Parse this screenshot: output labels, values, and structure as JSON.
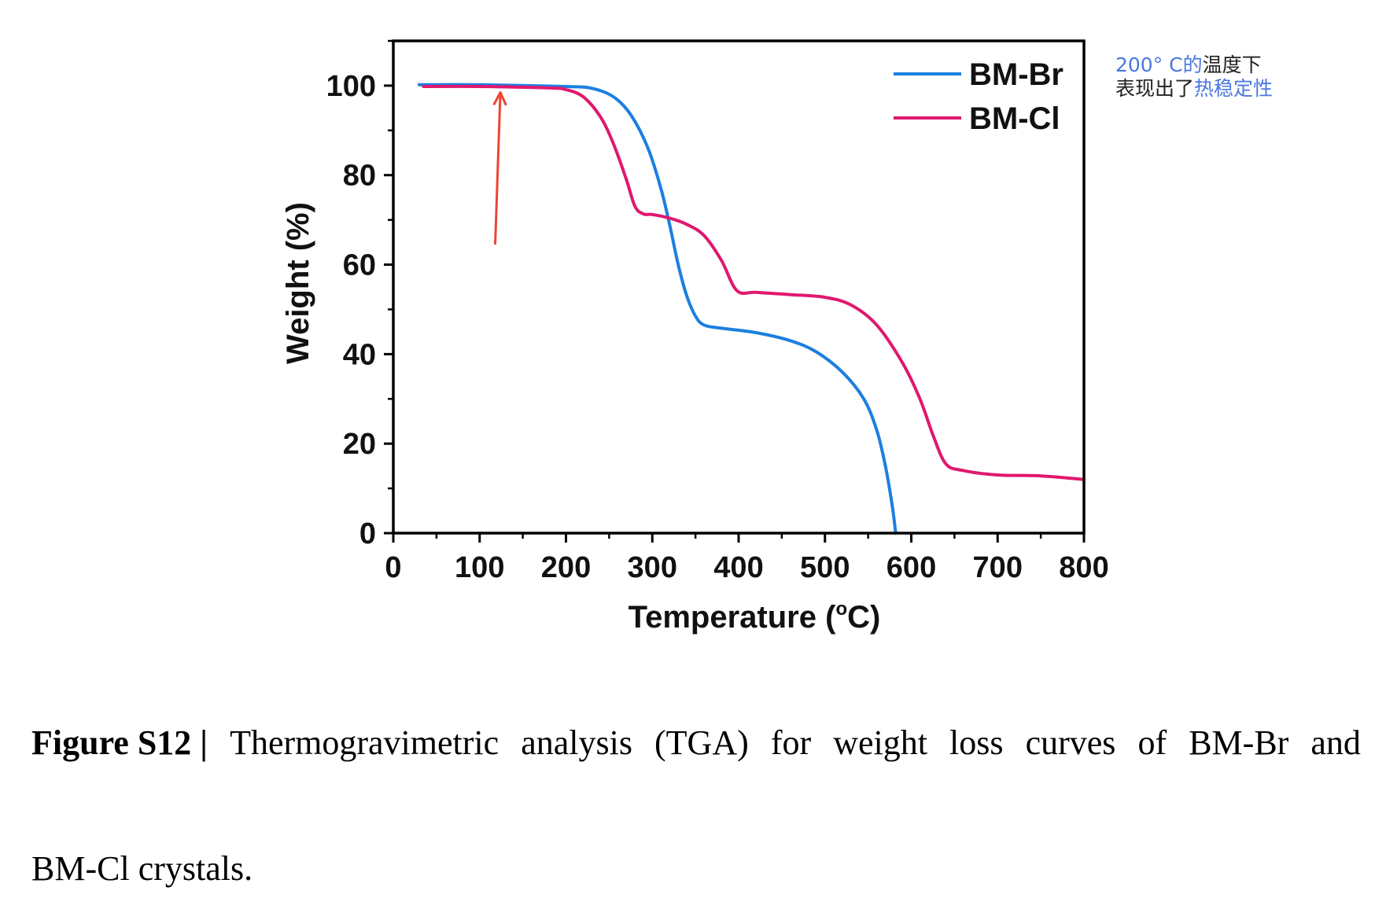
{
  "chart_data": {
    "type": "line",
    "xlabel": "Temperature (°C)",
    "xlabel_main": "Temperature (",
    "xlabel_deg": "o",
    "xlabel_end": "C)",
    "ylabel": "Weight (%)",
    "xlim": [
      0,
      800
    ],
    "ylim": [
      0,
      110
    ],
    "x_ticks": [
      0,
      100,
      200,
      300,
      400,
      500,
      600,
      700,
      800
    ],
    "y_ticks": [
      0,
      20,
      40,
      60,
      80,
      100
    ],
    "legend_position": "top-right",
    "series": [
      {
        "name": "BM-Br",
        "color": "#1c7fe0",
        "x": [
          30,
          100,
          200,
          230,
          255,
          275,
          295,
          310,
          320,
          330,
          340,
          350,
          360,
          380,
          420,
          460,
          490,
          520,
          545,
          560,
          570,
          578,
          582
        ],
        "y": [
          100.2,
          100.2,
          99.8,
          99.4,
          97.5,
          93.5,
          86,
          77,
          69,
          60,
          53,
          48.5,
          46.5,
          45.8,
          44.8,
          43,
          40.5,
          36,
          30,
          23,
          15,
          6,
          0
        ]
      },
      {
        "name": "BM-Cl",
        "color": "#e0186f",
        "x": [
          35,
          100,
          180,
          200,
          220,
          240,
          255,
          270,
          280,
          290,
          300,
          320,
          340,
          360,
          380,
          398,
          420,
          460,
          500,
          530,
          560,
          590,
          610,
          625,
          640,
          660,
          700,
          750,
          800
        ],
        "y": [
          99.8,
          99.8,
          99.5,
          99.1,
          97.5,
          93,
          87,
          79,
          73,
          71.3,
          71.2,
          70.4,
          69,
          66.5,
          61,
          54.2,
          53.8,
          53.3,
          52.7,
          51,
          46.5,
          38,
          30,
          22,
          15.5,
          14,
          13,
          12.8,
          12
        ]
      }
    ],
    "annotations": [
      {
        "type": "arrow",
        "color": "#ee4433",
        "from": [
          118,
          64.5
        ],
        "to": [
          124,
          98.5
        ]
      }
    ]
  },
  "note": {
    "line1_blue": "200° C的",
    "line1_black": "温度下",
    "line2_black": "表现出了",
    "line2_blue": "热稳定性"
  },
  "caption": {
    "label": "Figure S12 |",
    "line1_words": [
      "Thermogravimetric",
      "analysis",
      "(TGA)",
      "for",
      "weight",
      "loss",
      "curves",
      "of",
      "BM-Br",
      "and"
    ],
    "line2": "BM-Cl crystals."
  }
}
